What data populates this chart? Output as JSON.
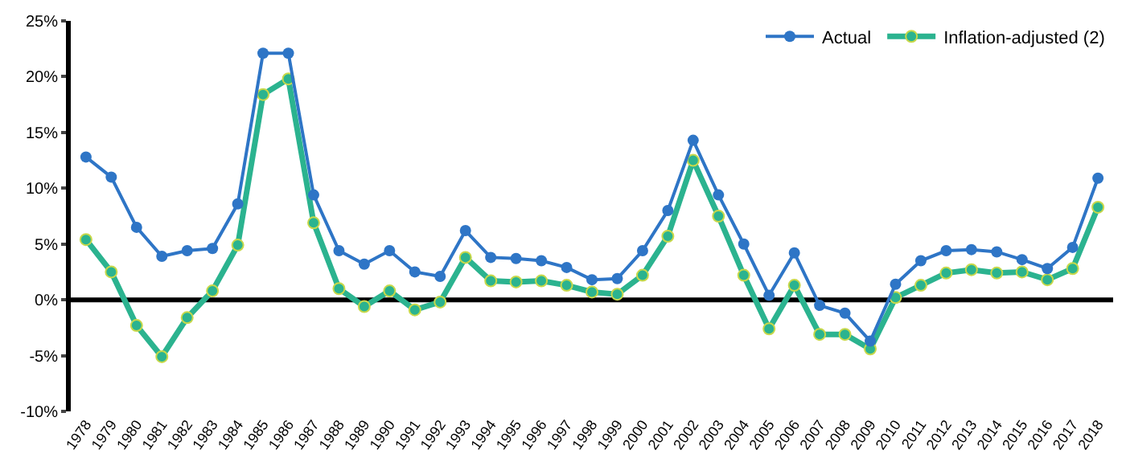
{
  "chart_data": {
    "type": "line",
    "categories": [
      "1978",
      "1979",
      "1980",
      "1981",
      "1982",
      "1983",
      "1984",
      "1985",
      "1986",
      "1987",
      "1988",
      "1989",
      "1990",
      "1991",
      "1992",
      "1993",
      "1994",
      "1995",
      "1996",
      "1997",
      "1998",
      "1999",
      "2000",
      "2001",
      "2002",
      "2003",
      "2004",
      "2005",
      "2006",
      "2007",
      "2008",
      "2009",
      "2010",
      "2011",
      "2012",
      "2013",
      "2014",
      "2015",
      "2016",
      "2017",
      "2018"
    ],
    "series": [
      {
        "name": "Actual",
        "color": "#2e75c6",
        "values": [
          12.8,
          11.0,
          6.5,
          3.9,
          4.4,
          4.6,
          8.6,
          22.1,
          22.1,
          9.4,
          4.4,
          3.2,
          4.4,
          2.5,
          2.1,
          6.2,
          3.8,
          3.7,
          3.5,
          2.9,
          1.8,
          1.9,
          4.4,
          8.0,
          14.3,
          9.4,
          5.0,
          0.4,
          4.2,
          -0.5,
          -1.2,
          -3.7,
          1.4,
          3.5,
          4.4,
          4.5,
          4.3,
          3.6,
          2.8,
          4.7,
          10.9
        ]
      },
      {
        "name": "Inflation-adjusted (2)",
        "color": "#2bb38f",
        "values": [
          5.4,
          2.5,
          -2.3,
          -5.1,
          -1.6,
          0.8,
          4.9,
          18.4,
          19.8,
          6.9,
          1.0,
          -0.6,
          0.8,
          -0.9,
          -0.2,
          3.8,
          1.7,
          1.6,
          1.7,
          1.3,
          0.7,
          0.5,
          2.2,
          5.7,
          12.5,
          7.5,
          2.2,
          -2.6,
          1.3,
          -3.1,
          -3.1,
          -4.4,
          0.2,
          1.3,
          2.4,
          2.7,
          2.4,
          2.5,
          1.8,
          2.8,
          8.3
        ]
      }
    ],
    "ylim": [
      -10,
      25
    ],
    "yticks": [
      {
        "value": -10,
        "label": "-10%"
      },
      {
        "value": -5,
        "label": "-5%"
      },
      {
        "value": 0,
        "label": "0%"
      },
      {
        "value": 5,
        "label": "5%"
      },
      {
        "value": 10,
        "label": "10%"
      },
      {
        "value": 15,
        "label": "15%"
      },
      {
        "value": 20,
        "label": "20%"
      },
      {
        "value": 25,
        "label": "25%"
      }
    ],
    "ref_lines": [
      {
        "axis": "y",
        "value": 0,
        "color": "#000000",
        "line_style": "solid"
      }
    ],
    "marker": "circle",
    "line_style": "solid",
    "legend": "top right",
    "grid": false
  }
}
